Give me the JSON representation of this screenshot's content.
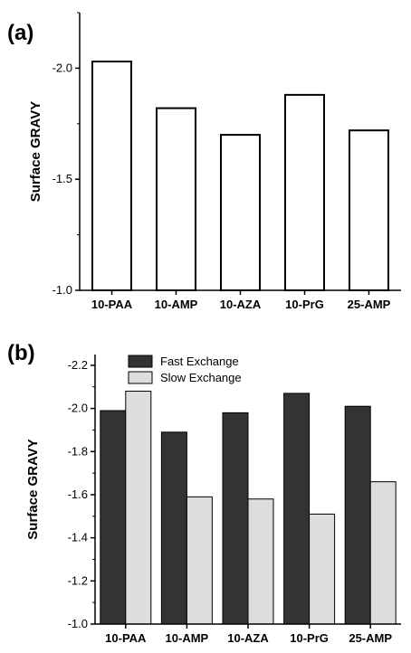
{
  "chart_data": [
    {
      "panel": "(a)",
      "type": "bar",
      "title": "",
      "xlabel": "",
      "ylabel": "Surface GRAVY",
      "categories": [
        "10-PAA",
        "10-AMP",
        "10-AZA",
        "10-PrG",
        "25-AMP"
      ],
      "values": [
        -2.03,
        -1.82,
        -1.7,
        -1.88,
        -1.72
      ],
      "ylim": [
        -1.0,
        -2.25
      ],
      "yaxis_inverted": true,
      "yticks": [
        -1.0,
        -1.5,
        -2.0
      ],
      "ytick_labels": [
        "-1.0",
        "-1.5",
        "-2.0"
      ],
      "bar_fill": "#ffffff",
      "bar_stroke": "#000000",
      "grid": false,
      "legend": "none"
    },
    {
      "panel": "(b)",
      "type": "bar",
      "title": "",
      "xlabel": "",
      "ylabel": "Surface GRAVY",
      "categories": [
        "10-PAA",
        "10-AMP",
        "10-AZA",
        "10-PrG",
        "25-AMP"
      ],
      "series": [
        {
          "name": "Fast Exchange",
          "color": "#333333",
          "values": [
            -1.99,
            -1.89,
            -1.98,
            -2.07,
            -2.01
          ]
        },
        {
          "name": "Slow Exchange",
          "color": "#dddddd",
          "values": [
            -2.08,
            -1.59,
            -1.58,
            -1.51,
            -1.66
          ]
        }
      ],
      "ylim": [
        -1.0,
        -2.25
      ],
      "yaxis_inverted": true,
      "yticks": [
        -1.0,
        -1.2,
        -1.4,
        -1.6,
        -1.8,
        -2.0,
        -2.2
      ],
      "ytick_labels": [
        "-1.0",
        "-1.2",
        "-1.4",
        "-1.6",
        "-1.8",
        "-2.0",
        "-2.2"
      ],
      "grid": false,
      "legend": "top-left"
    }
  ]
}
